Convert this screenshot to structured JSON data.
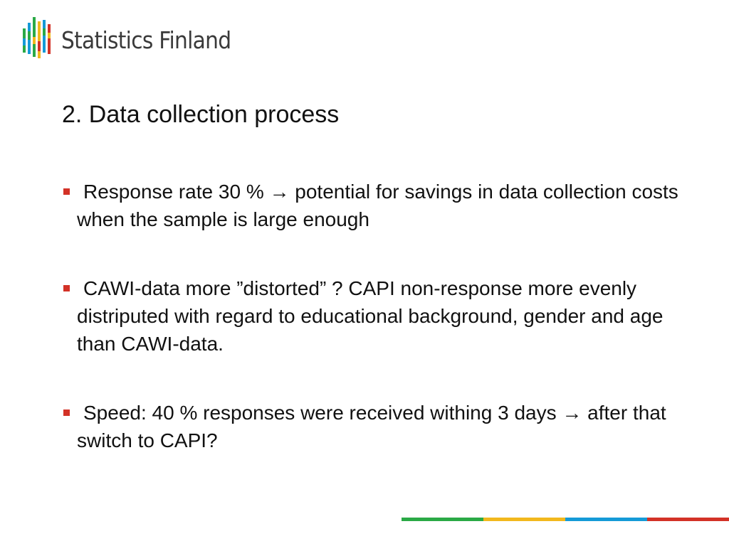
{
  "logo": {
    "text": "Statistics Finland",
    "colors": [
      "#2aa946",
      "#f2b81d",
      "#159ad7",
      "#d33227"
    ]
  },
  "slide": {
    "title": "2. Data collection process",
    "bullets": [
      {
        "text": "Response rate 30 % → potential for savings in data collection costs when the sample is large enough"
      },
      {
        "text": "CAWI-data more ”distorted” ? CAPI non-response more evenly distriputed with regard to educational background, gender and age than CAWI-data."
      },
      {
        "text": "Speed: 40 % responses were received withing 3 days → after that switch to CAPI?"
      }
    ],
    "bullet_color": "#d33227"
  },
  "footer_bar": {
    "colors": [
      "#2aa946",
      "#f2b81d",
      "#159ad7",
      "#d33227"
    ]
  }
}
